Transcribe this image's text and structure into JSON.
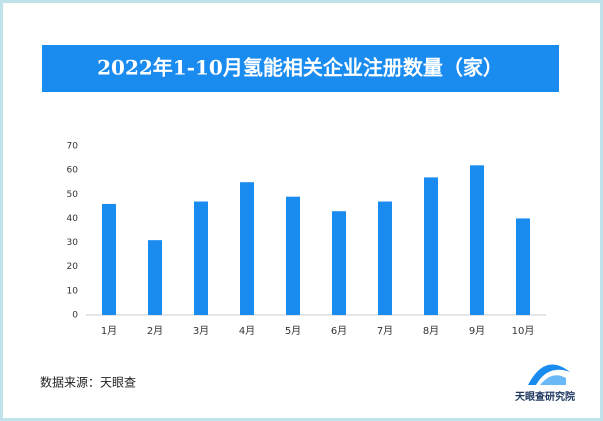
{
  "chart_data": {
    "type": "bar",
    "title": "2022年1-10月氢能相关企业注册数量（家）",
    "categories": [
      "1月",
      "2月",
      "3月",
      "4月",
      "5月",
      "6月",
      "7月",
      "8月",
      "9月",
      "10月"
    ],
    "values": [
      46,
      31,
      47,
      55,
      49,
      43,
      47,
      57,
      62,
      40
    ],
    "color": "#1a8cf0",
    "ylim": [
      0,
      70
    ],
    "yticks": [
      0,
      10,
      20,
      30,
      40,
      50,
      60,
      70
    ],
    "grid": false,
    "source": "数据来源：天眼查",
    "logo": "天眼查研究院"
  }
}
